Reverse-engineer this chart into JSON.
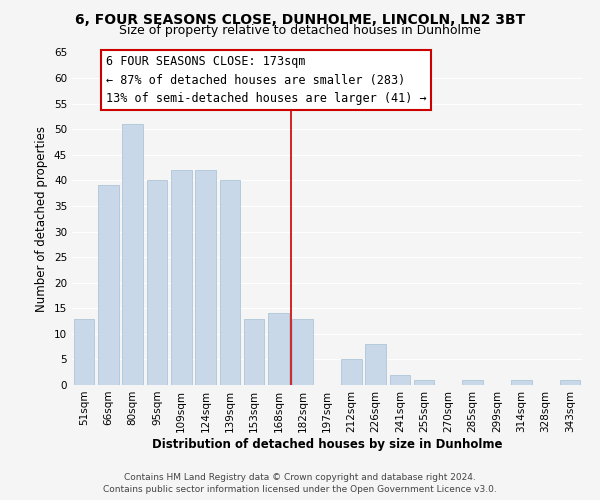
{
  "title": "6, FOUR SEASONS CLOSE, DUNHOLME, LINCOLN, LN2 3BT",
  "subtitle": "Size of property relative to detached houses in Dunholme",
  "xlabel": "Distribution of detached houses by size in Dunholme",
  "ylabel": "Number of detached properties",
  "bar_labels": [
    "51sqm",
    "66sqm",
    "80sqm",
    "95sqm",
    "109sqm",
    "124sqm",
    "139sqm",
    "153sqm",
    "168sqm",
    "182sqm",
    "197sqm",
    "212sqm",
    "226sqm",
    "241sqm",
    "255sqm",
    "270sqm",
    "285sqm",
    "299sqm",
    "314sqm",
    "328sqm",
    "343sqm"
  ],
  "bar_values": [
    13,
    39,
    51,
    40,
    42,
    42,
    40,
    13,
    14,
    13,
    0,
    5,
    8,
    2,
    1,
    0,
    1,
    0,
    1,
    0,
    1
  ],
  "bar_color": "#c8d8e8",
  "bar_edge_color": "#aec6d8",
  "vline_x": 8.5,
  "vline_color": "#cc0000",
  "ylim": [
    0,
    65
  ],
  "yticks": [
    0,
    5,
    10,
    15,
    20,
    25,
    30,
    35,
    40,
    45,
    50,
    55,
    60,
    65
  ],
  "annotation_line1": "6 FOUR SEASONS CLOSE: 173sqm",
  "annotation_line2": "← 87% of detached houses are smaller (283)",
  "annotation_line3": "13% of semi-detached houses are larger (41) →",
  "footer_line1": "Contains HM Land Registry data © Crown copyright and database right 2024.",
  "footer_line2": "Contains public sector information licensed under the Open Government Licence v3.0.",
  "background_color": "#f5f5f5",
  "grid_color": "#ffffff",
  "title_fontsize": 10,
  "subtitle_fontsize": 9,
  "axis_label_fontsize": 8.5,
  "tick_fontsize": 7.5,
  "annotation_fontsize": 8.5,
  "footer_fontsize": 6.5
}
